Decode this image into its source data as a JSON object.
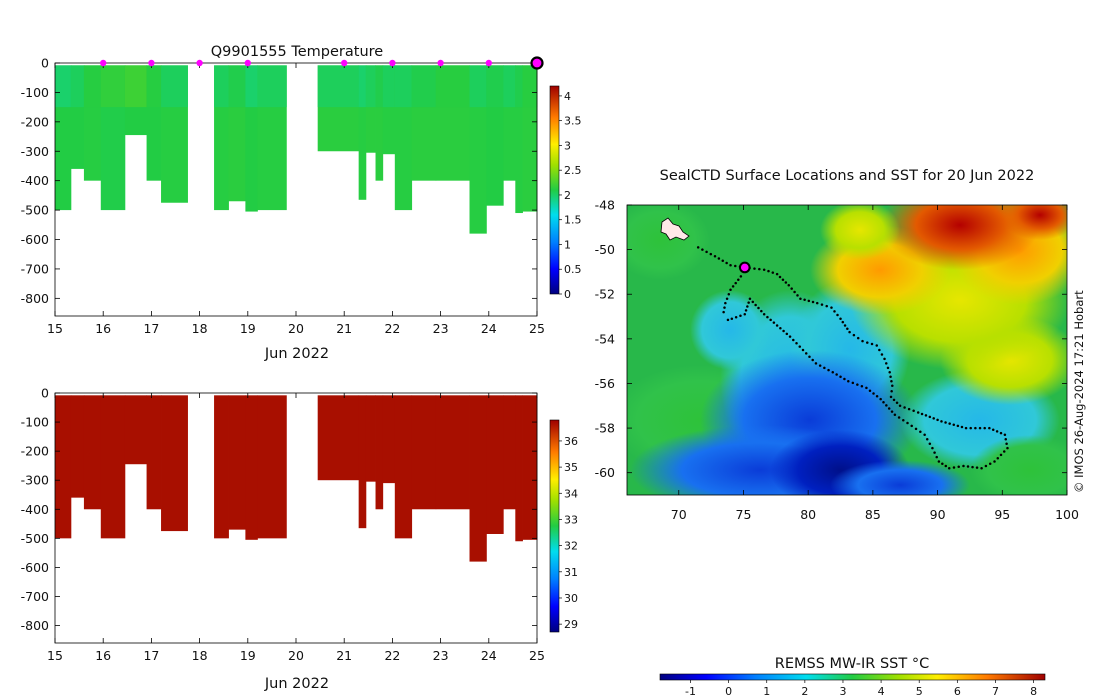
{
  "colors": {
    "temperature_fill": "#15d015",
    "temperature_fill_deep": "#2fc236",
    "salinity_fill": "#a80f00",
    "sample_marker": "#ff00ff",
    "track": "#000000"
  },
  "chart_data": [
    {
      "type": "heatmap",
      "panel": "temperature-profile",
      "title": "Q9901555  Temperature",
      "xlabel": "Jun 2022",
      "ylabel": "",
      "xlim": [
        15,
        25
      ],
      "ylim": [
        -860,
        0
      ],
      "xticks": [
        "15",
        "16",
        "17",
        "18",
        "19",
        "20",
        "21",
        "22",
        "23",
        "24",
        "25"
      ],
      "yticks": [
        "0",
        "-100",
        "-200",
        "-300",
        "-400",
        "-500",
        "-600",
        "-700",
        "-800"
      ],
      "colorbar": {
        "min": 0,
        "max": 4.2,
        "ticks": [
          "0",
          "0.5",
          "1",
          "1.5",
          "2",
          "2.5",
          "3",
          "3.5",
          "4"
        ]
      },
      "profiles_x": [
        15.0,
        15.33,
        15.6,
        15.95,
        16.45,
        16.9,
        17.2,
        17.75,
        18.3,
        18.6,
        18.95,
        19.2,
        19.8,
        20.45,
        21.3,
        21.45,
        21.65,
        21.8,
        22.05,
        22.4,
        22.9,
        23.6,
        23.95,
        24.3,
        24.55,
        24.7,
        25.0
      ],
      "profiles_depth": [
        -500,
        -360,
        -400,
        -500,
        -245,
        -400,
        -475,
        null,
        -500,
        -470,
        -505,
        -500,
        null,
        -300,
        -465,
        -305,
        -400,
        -310,
        -500,
        -400,
        -400,
        -580,
        -485,
        -400,
        -510,
        -505
      ],
      "cell_values": [
        1.8,
        1.8,
        1.85,
        1.75,
        1.8,
        1.8,
        1.85,
        null,
        1.85,
        1.9,
        1.8,
        1.85,
        null,
        1.9,
        1.85,
        1.9,
        1.9,
        1.85,
        1.85,
        1.9,
        1.9,
        1.85,
        1.8,
        1.85,
        1.85,
        1.9
      ],
      "surface_layer": [
        1.75,
        1.8,
        1.9,
        1.95,
        2.0,
        1.9,
        1.8,
        null,
        1.8,
        1.85,
        1.75,
        1.8,
        null,
        1.8,
        1.75,
        1.8,
        1.85,
        1.8,
        1.8,
        1.85,
        1.9,
        1.8,
        1.85,
        1.8,
        1.85,
        1.9
      ],
      "sample_markers_x": [
        16,
        17,
        18,
        19,
        21,
        22,
        23,
        24
      ],
      "current_marker_x": 25
    },
    {
      "type": "heatmap",
      "panel": "salinity-profile",
      "title": "",
      "xlabel": "Jun 2022",
      "ylabel": "",
      "xlim": [
        15,
        25
      ],
      "ylim": [
        -860,
        0
      ],
      "xticks": [
        "15",
        "16",
        "17",
        "18",
        "19",
        "20",
        "21",
        "22",
        "23",
        "24",
        "25"
      ],
      "yticks": [
        "0",
        "-100",
        "-200",
        "-300",
        "-400",
        "-500",
        "-600",
        "-700",
        "-800"
      ],
      "colorbar": {
        "min": 28.7,
        "max": 36.8,
        "ticks": [
          "29",
          "30",
          "31",
          "32",
          "33",
          "34",
          "35",
          "36"
        ]
      }
    },
    {
      "type": "heatmap",
      "panel": "sst-map",
      "title": "SealCTD Surface Locations and SST for 20 Jun 2022",
      "xlim": [
        66,
        100
      ],
      "ylim": [
        -61,
        -48
      ],
      "xticks": [
        "70",
        "75",
        "80",
        "85",
        "90",
        "95",
        "100"
      ],
      "yticks": [
        "-48",
        "-50",
        "-52",
        "-54",
        "-56",
        "-58",
        "-60"
      ],
      "colorbar_label": "REMSS MW-IR SST °C",
      "colorbar": {
        "min": -1.8,
        "max": 8.3,
        "ticks": [
          "-1",
          "0",
          "1",
          "2",
          "3",
          "4",
          "5",
          "6",
          "7",
          "8"
        ]
      },
      "current_position": {
        "lon": 75.1,
        "lat": -50.8
      },
      "track": [
        [
          75.1,
          -50.8
        ],
        [
          76.6,
          -50.9
        ],
        [
          77.6,
          -51.1
        ],
        [
          78.5,
          -51.6
        ],
        [
          79.4,
          -52.2
        ],
        [
          80.7,
          -52.4
        ],
        [
          81.8,
          -52.6
        ],
        [
          82.5,
          -53.1
        ],
        [
          83.2,
          -53.7
        ],
        [
          84.2,
          -54.1
        ],
        [
          85.3,
          -54.3
        ],
        [
          85.9,
          -54.9
        ],
        [
          86.3,
          -55.5
        ],
        [
          86.5,
          -56.1
        ],
        [
          86.4,
          -56.6
        ],
        [
          87.1,
          -57.0
        ],
        [
          88.5,
          -57.3
        ],
        [
          90.3,
          -57.7
        ],
        [
          92.2,
          -58.0
        ],
        [
          94.0,
          -58.0
        ],
        [
          95.2,
          -58.3
        ],
        [
          95.4,
          -58.9
        ],
        [
          94.4,
          -59.5
        ],
        [
          93.4,
          -59.8
        ],
        [
          92.0,
          -59.7
        ],
        [
          90.9,
          -59.8
        ],
        [
          90.1,
          -59.5
        ],
        [
          89.6,
          -58.9
        ],
        [
          89.0,
          -58.3
        ],
        [
          88.0,
          -57.9
        ],
        [
          86.7,
          -57.4
        ],
        [
          85.6,
          -56.7
        ],
        [
          84.5,
          -56.2
        ],
        [
          83.1,
          -55.9
        ],
        [
          81.9,
          -55.5
        ],
        [
          80.6,
          -55.1
        ],
        [
          79.6,
          -54.5
        ],
        [
          78.6,
          -53.9
        ],
        [
          77.6,
          -53.4
        ],
        [
          76.6,
          -52.9
        ],
        [
          75.5,
          -52.2
        ],
        [
          75.1,
          -52.9
        ],
        [
          74.1,
          -53.1
        ],
        [
          73.5,
          -53.2
        ]
      ],
      "outbound": [
        [
          74.8,
          -51.2
        ],
        [
          74.0,
          -51.8
        ],
        [
          73.6,
          -52.4
        ],
        [
          73.4,
          -53.0
        ]
      ],
      "westward": [
        [
          71.5,
          -49.9
        ],
        [
          72.8,
          -50.3
        ],
        [
          74.0,
          -50.7
        ],
        [
          75.1,
          -50.8
        ]
      ]
    }
  ],
  "credit": "© IMOS 26-Aug-2024 17:21 Hobart"
}
